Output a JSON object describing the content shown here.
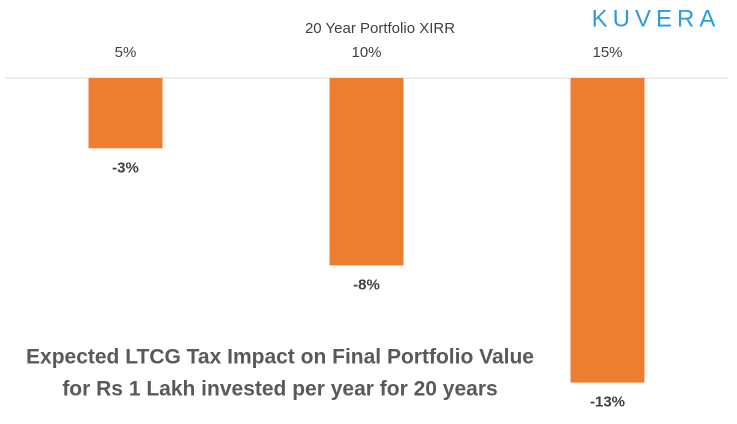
{
  "logo": "KUVERA",
  "chart_data": {
    "type": "bar",
    "title": [
      "Expected LTCG Tax Impact on Final Portfolio Value",
      "for Rs 1 Lakh invested per year for 20 years"
    ],
    "x_label": "20 Year Portfolio XIRR",
    "categories": [
      "5%",
      "10%",
      "15%"
    ],
    "values": [
      -3,
      -8,
      -13
    ],
    "value_labels": [
      "-3%",
      "-8%",
      "-13%"
    ],
    "color": "#ED7D31",
    "ylim": [
      -14,
      0
    ]
  }
}
